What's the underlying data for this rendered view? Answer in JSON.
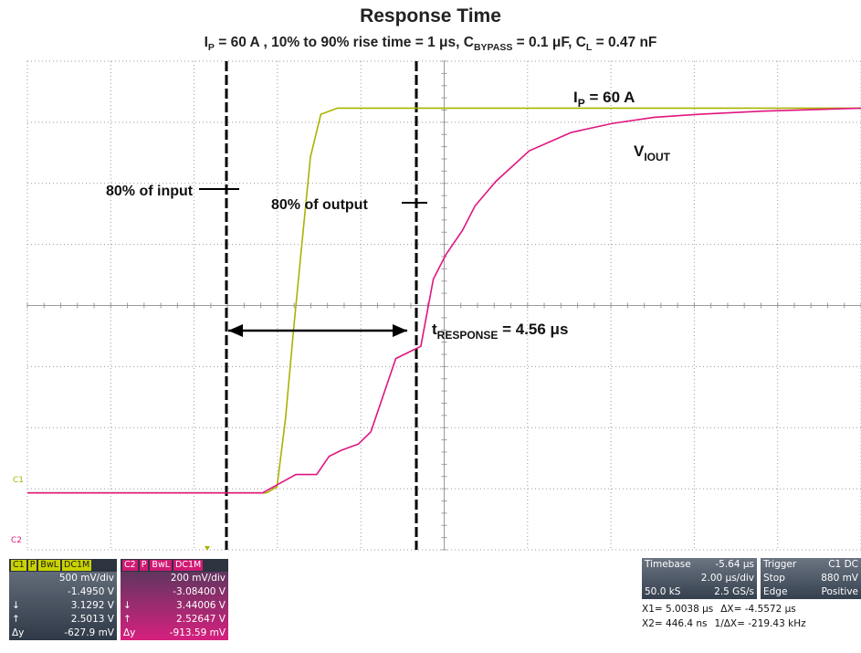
{
  "header": {
    "title": "Response Time",
    "subtitle": {
      "ip": "I",
      "ip_sub": "P",
      "ip_val": " = 60 A , 10% to 90% rise time = 1 μs, C",
      "cb_sub": "BYPASS",
      "cb_val": " = 0.1 μF, C",
      "cl_sub": "L",
      "cl_val": " = 0.47 nF"
    }
  },
  "annotations": {
    "ip_label": "I",
    "ip_sub": "P",
    "ip_val": " = 60 A",
    "viout": "V",
    "viout_sub": "IOUT",
    "input80": "80% of input",
    "output80": "80% of output",
    "tresp": "t",
    "tresp_sub": "RESPONSE",
    "tresp_val": " = 4.56 μs",
    "c1_marker": "C1",
    "c2_marker": "C2"
  },
  "colors": {
    "ch1": "#a8b400",
    "ch2": "#e0157f",
    "grid": "#9a9a9a",
    "cursor": "#000000"
  },
  "chart_data": {
    "type": "line",
    "x_unit": "μs",
    "xlim": [
      -5.64,
      14.36
    ],
    "x_divisions": 10,
    "y_divisions": 8,
    "series": [
      {
        "channel": "C1",
        "color": "#a8b400",
        "x": [
          -5.64,
          0.1,
          0.35,
          0.55,
          0.75,
          0.95,
          1.15,
          1.4,
          1.8,
          14.36
        ],
        "y_div": [
          -0.1,
          -0.1,
          0.0,
          1.1,
          2.6,
          4.0,
          5.4,
          6.1,
          6.2,
          6.2
        ]
      },
      {
        "channel": "C2",
        "color": "#e0157f",
        "x": [
          -5.64,
          0.0,
          0.4,
          0.8,
          1.3,
          1.6,
          1.9,
          2.3,
          2.6,
          3.0,
          3.2,
          3.5,
          3.8,
          4.1,
          4.4,
          4.8,
          5.1,
          5.6,
          6.4,
          7.4,
          8.4,
          9.4,
          10.5,
          12.0,
          14.36
        ],
        "y_div": [
          -0.1,
          -0.1,
          0.05,
          0.2,
          0.2,
          0.5,
          0.6,
          0.7,
          0.9,
          1.7,
          2.1,
          2.2,
          2.3,
          3.4,
          3.8,
          4.2,
          4.6,
          5.0,
          5.5,
          5.8,
          5.95,
          6.05,
          6.1,
          6.15,
          6.2
        ]
      }
    ],
    "cursors": {
      "x1_us": 5.0038,
      "x2_us": 0.4464
    },
    "response_time_us": 4.56
  },
  "ch1_panel": {
    "ch": "C1",
    "p": "P",
    "bw": "BwL",
    "dc": "DC1M",
    "rows": [
      [
        "",
        "500 mV/div"
      ],
      [
        "",
        "-1.4950 V"
      ],
      [
        "↓",
        "3.1292 V"
      ],
      [
        "↑",
        "2.5013 V"
      ],
      [
        "Δy",
        "-627.9 mV"
      ]
    ]
  },
  "ch2_panel": {
    "ch": "C2",
    "p": "P",
    "bw": "BwL",
    "dc": "DC1M",
    "rows": [
      [
        "",
        "200 mV/div"
      ],
      [
        "",
        "-3.08400 V"
      ],
      [
        "↓",
        "3.44006 V"
      ],
      [
        "↑",
        "2.52647 V"
      ],
      [
        "Δy",
        "-913.59 mV"
      ]
    ]
  },
  "timebase": {
    "label": "Timebase",
    "offset": "-5.64 μs",
    "div": "2.00 μs/div",
    "samples": "50.0 kS",
    "rate": "2.5 GS/s"
  },
  "trigger": {
    "label": "Trigger",
    "ch": "C1 DC",
    "mode": "Stop",
    "level": "880 mV",
    "type": "Edge",
    "slope": "Positive"
  },
  "measure": {
    "x1": "X1= 5.0038 μs",
    "dx": "ΔX= -4.5572 μs",
    "x2": "X2= 446.4 ns",
    "inv": "1/ΔX= -219.43 kHz"
  }
}
